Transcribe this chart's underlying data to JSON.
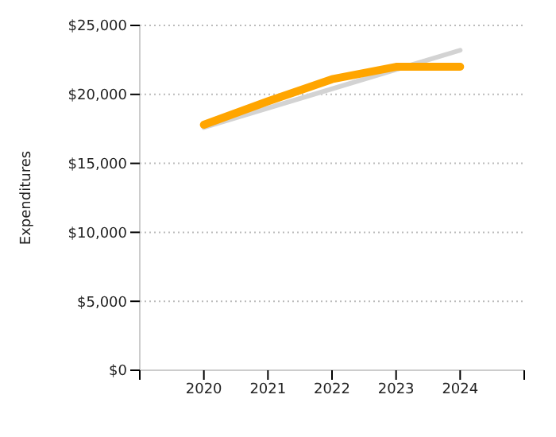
{
  "chart_data": {
    "type": "line",
    "ylabel": "Expenditures",
    "x": [
      2020,
      2021,
      2022,
      2023,
      2024
    ],
    "series": [
      {
        "type": "line",
        "color": "#d3d3d3",
        "x": [
          2020,
          2024
        ],
        "values": [
          17600,
          23200
        ]
      },
      {
        "color": "#ffa500",
        "values": [
          17800,
          19500,
          21100,
          22000,
          22000
        ]
      }
    ],
    "xlim": [
      2019,
      2025
    ],
    "xticks": [
      {
        "value": 2019,
        "label": null
      },
      2020,
      2021,
      2022,
      2023,
      2024,
      {
        "value": 2025,
        "label": null
      }
    ],
    "ylim": [
      0,
      25000
    ],
    "yticks": [
      {
        "value": 0,
        "label": "$0"
      },
      {
        "value": 5000,
        "label": "$5,000"
      },
      {
        "value": 10000,
        "label": "$10,000"
      },
      {
        "value": 15000,
        "label": "$15,000"
      },
      {
        "value": 20000,
        "label": "$20,000"
      },
      {
        "value": 25000,
        "label": "$25,000"
      }
    ],
    "grid": "y",
    "marker": "none",
    "line_style": "solid"
  }
}
